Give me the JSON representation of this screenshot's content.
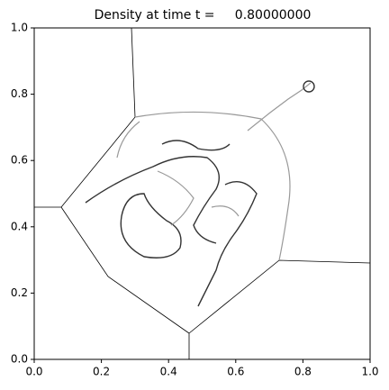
{
  "chart_data": {
    "type": "image",
    "title": "Density at time t =     0.80000000",
    "xlim": [
      0,
      1
    ],
    "ylim": [
      0,
      1
    ],
    "xticks": [
      {
        "value": 0,
        "label": "0.0"
      },
      0.2,
      0.4,
      0.6,
      0.8,
      {
        "value": 1,
        "label": "1.0"
      }
    ],
    "yticks": [
      {
        "value": 0,
        "label": "0.0"
      },
      0.2,
      0.4,
      0.6,
      0.8,
      {
        "value": 1,
        "label": "1.0"
      }
    ]
  }
}
